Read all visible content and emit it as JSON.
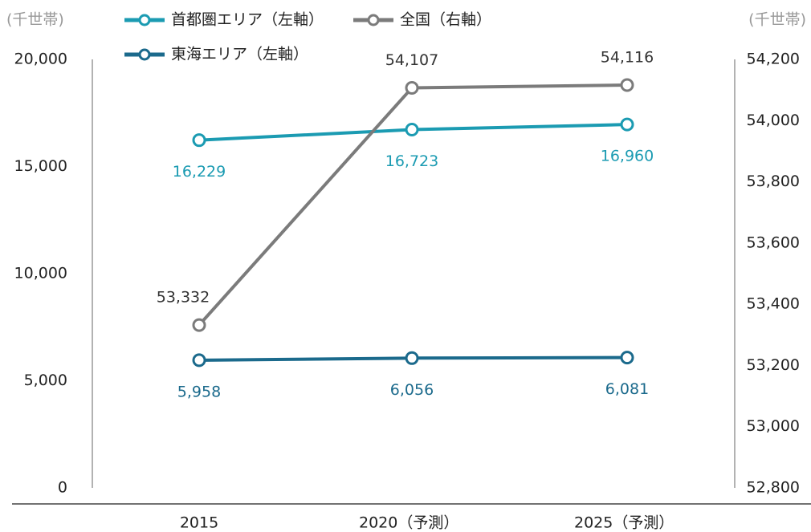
{
  "chart_data": {
    "type": "line",
    "y_unit_label": "(千世帯)",
    "y2_unit_label": "(千世帯)",
    "categories": [
      "2015",
      "2020（予測）",
      "2025（予測）"
    ],
    "ylim": [
      0,
      20000
    ],
    "yticks": [
      0,
      {
        "value": 5000,
        "label": "5,000"
      },
      {
        "value": 10000,
        "label": "10,000"
      },
      {
        "value": 15000,
        "label": "15,000"
      },
      {
        "value": 20000,
        "label": "20,000"
      }
    ],
    "y2lim": [
      52800,
      54200
    ],
    "y2ticks": [
      {
        "value": 52800,
        "label": "52,800"
      },
      {
        "value": 53000,
        "label": "53,000"
      },
      {
        "value": 53200,
        "label": "53,200"
      },
      {
        "value": 53400,
        "label": "53,400"
      },
      {
        "value": 53600,
        "label": "53,600"
      },
      {
        "value": 53800,
        "label": "53,800"
      },
      {
        "value": 54000,
        "label": "54,000"
      },
      {
        "value": 54200,
        "label": "54,200"
      }
    ],
    "series": [
      {
        "name": "首都圏エリア（左軸）",
        "color": "#1b9bb2",
        "values": [
          16229,
          16723,
          16960
        ],
        "value_labels": [
          "16,229",
          "16,723",
          "16,960"
        ]
      },
      {
        "name": "全国（右軸）",
        "color": "#7b7b7b",
        "axis": "y2",
        "values": [
          53332,
          54107,
          54116
        ],
        "value_labels": [
          "53,332",
          "54,107",
          "54,116"
        ]
      },
      {
        "name": "東海エリア（左軸）",
        "color": "#1b6a8c",
        "values": [
          5958,
          6056,
          6081
        ],
        "value_labels": [
          "5,958",
          "6,056",
          "6,081"
        ]
      }
    ]
  }
}
